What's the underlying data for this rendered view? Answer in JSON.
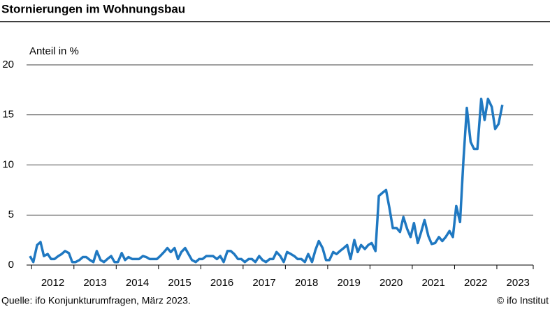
{
  "chart_data": {
    "type": "line",
    "title": "Stornierungen im Wohnungsbau",
    "y_label": "Anteil in %",
    "source": "Quelle: ifo Konjunkturumfragen, März 2023.",
    "credit": "© ifo Institut",
    "x": [
      2011.96,
      2012.04,
      2012.13,
      2012.21,
      2012.29,
      2012.38,
      2012.46,
      2012.54,
      2012.63,
      2012.71,
      2012.79,
      2012.88,
      2012.96,
      2013.04,
      2013.13,
      2013.21,
      2013.29,
      2013.38,
      2013.46,
      2013.54,
      2013.63,
      2013.71,
      2013.79,
      2013.88,
      2013.96,
      2014.04,
      2014.13,
      2014.21,
      2014.29,
      2014.38,
      2014.46,
      2014.54,
      2014.63,
      2014.71,
      2014.79,
      2014.88,
      2014.96,
      2015.04,
      2015.13,
      2015.21,
      2015.29,
      2015.38,
      2015.46,
      2015.54,
      2015.63,
      2015.71,
      2015.79,
      2015.88,
      2015.96,
      2016.04,
      2016.13,
      2016.21,
      2016.29,
      2016.38,
      2016.46,
      2016.54,
      2016.63,
      2016.71,
      2016.79,
      2016.88,
      2016.96,
      2017.04,
      2017.13,
      2017.21,
      2017.29,
      2017.38,
      2017.46,
      2017.54,
      2017.63,
      2017.71,
      2017.79,
      2017.88,
      2017.96,
      2018.04,
      2018.13,
      2018.21,
      2018.29,
      2018.38,
      2018.46,
      2018.54,
      2018.63,
      2018.71,
      2018.79,
      2018.88,
      2018.96,
      2019.04,
      2019.13,
      2019.21,
      2019.29,
      2019.38,
      2019.46,
      2019.54,
      2019.63,
      2019.71,
      2019.79,
      2019.88,
      2019.96,
      2020.04,
      2020.13,
      2020.21,
      2020.29,
      2020.38,
      2020.46,
      2020.54,
      2020.63,
      2020.71,
      2020.79,
      2020.88,
      2020.96,
      2021.04,
      2021.13,
      2021.21,
      2021.29,
      2021.38,
      2021.46,
      2021.54,
      2021.63,
      2021.71,
      2021.79,
      2021.88,
      2021.96,
      2022.04,
      2022.13,
      2022.21,
      2022.29,
      2022.38,
      2022.46,
      2022.54,
      2022.63,
      2022.71,
      2022.79,
      2022.88,
      2022.96,
      2023.04,
      2023.13
    ],
    "series": [
      {
        "color": "#1f78c1",
        "values": [
          0.9,
          0.3,
          2.0,
          2.3,
          0.9,
          1.1,
          0.6,
          0.6,
          0.9,
          1.1,
          1.4,
          1.2,
          0.3,
          0.3,
          0.5,
          0.8,
          0.8,
          0.5,
          0.3,
          1.4,
          0.5,
          0.3,
          0.6,
          0.9,
          0.3,
          0.3,
          1.2,
          0.5,
          0.8,
          0.6,
          0.6,
          0.6,
          0.9,
          0.8,
          0.6,
          0.6,
          0.6,
          0.9,
          1.3,
          1.7,
          1.3,
          1.7,
          0.6,
          1.3,
          1.7,
          1.1,
          0.5,
          0.3,
          0.6,
          0.6,
          0.9,
          0.9,
          0.9,
          0.6,
          0.9,
          0.3,
          1.4,
          1.4,
          1.1,
          0.6,
          0.6,
          0.3,
          0.6,
          0.6,
          0.3,
          0.9,
          0.5,
          0.3,
          0.6,
          0.6,
          1.3,
          0.9,
          0.3,
          1.3,
          1.1,
          0.9,
          0.6,
          0.6,
          0.3,
          1.1,
          0.3,
          1.5,
          2.4,
          1.7,
          0.5,
          0.5,
          1.3,
          1.1,
          1.4,
          1.7,
          2.0,
          0.6,
          2.5,
          1.3,
          2.0,
          1.6,
          2.0,
          2.2,
          1.4,
          6.9,
          7.2,
          7.5,
          5.7,
          3.7,
          3.7,
          3.3,
          4.8,
          3.6,
          2.8,
          4.2,
          2.2,
          3.3,
          4.5,
          2.9,
          2.1,
          2.2,
          2.8,
          2.4,
          2.8,
          3.4,
          2.8,
          5.9,
          4.3,
          10.5,
          15.7,
          12.3,
          11.6,
          11.6,
          16.6,
          14.5,
          16.6,
          15.8,
          13.6,
          14.1,
          16.0
        ]
      }
    ],
    "xlim": [
      2011.88,
      2023.86
    ],
    "xticks": [
      2012,
      2013,
      2014,
      2015,
      2016,
      2017,
      2018,
      2019,
      2020,
      2021,
      2022,
      2023
    ],
    "ylim": [
      0,
      20
    ],
    "yticks": [
      0,
      5,
      10,
      15,
      20
    ],
    "grid": true
  }
}
